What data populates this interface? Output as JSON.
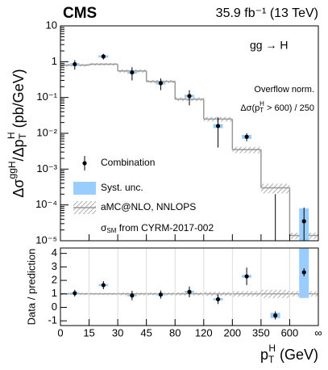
{
  "chart_data": [
    {
      "type": "step",
      "log_y": true,
      "title": "CMS",
      "subtitle": "35.9 fb⁻¹ (13 TeV)",
      "y_label": [
        "Δσ",
        "ggH",
        "/Δp",
        "T",
        "H",
        " (pb/GeV)"
      ],
      "annotations": [
        "gg → H",
        "Overflow norm.",
        [
          "Δσ(p",
          "T",
          "H",
          " > 600) / 250"
        ]
      ],
      "legend_note": [
        "σ",
        "SM",
        " from CYRM-2017-002"
      ],
      "ylim": [
        1e-05,
        10
      ],
      "yticks": [
        {
          "value": 1e-05,
          "label": "10⁻⁵"
        },
        {
          "value": 0.0001,
          "label": "10⁻⁴"
        },
        {
          "value": 0.001,
          "label": "10⁻³"
        },
        {
          "value": 0.01,
          "label": "10⁻²"
        },
        {
          "value": 0.1,
          "label": "10⁻¹"
        },
        1,
        10
      ],
      "series": [
        {
          "name": "Combination",
          "color": "#000000",
          "values": [
            0.85,
            1.4,
            0.5,
            0.25,
            0.11,
            0.016,
            0.008,
            -0.00018,
            3.5e-05
          ],
          "errors": [
            0.25,
            0.25,
            0.2,
            0.09,
            0.05,
            0.012,
            0.002,
            0.00038,
            5e-05
          ]
        },
        {
          "name": "Syst. unc.",
          "color": "#99ccff",
          "values": [
            0.06,
            0.1,
            0.04,
            0.02,
            0.01,
            0.002,
            0.001,
            0.0001,
            4.5e-05
          ]
        },
        {
          "name": "aMC@NLO, NNLOPS",
          "color": "#999999",
          "values": [
            0.8,
            0.85,
            0.55,
            0.28,
            0.09,
            0.025,
            0.0035,
            0.0003,
            1.4e-05
          ],
          "rel_errors": [
            0.08,
            0.08,
            0.1,
            0.1,
            0.12,
            0.15,
            0.2,
            0.3,
            0.2
          ]
        }
      ]
    },
    {
      "type": "ratio",
      "y_label": "Data / prediction",
      "x_label": [
        "p",
        "T",
        "H",
        " (GeV)"
      ],
      "xticks": [
        0,
        15,
        30,
        45,
        80,
        120,
        200,
        350,
        600,
        "∞"
      ],
      "ylim": [
        -1.35,
        4.4
      ],
      "yticks": [
        -1,
        0,
        1,
        2,
        3,
        4
      ],
      "grid": true,
      "series": [
        {
          "name": "Combination",
          "color": "#000000",
          "values": [
            1.05,
            1.65,
            0.88,
            0.95,
            1.15,
            0.6,
            2.3,
            -0.6,
            2.6
          ],
          "errors": [
            0.25,
            0.3,
            0.35,
            0.3,
            0.4,
            0.35,
            0.65,
            0.3,
            0.3
          ]
        },
        {
          "name": "Syst. unc.",
          "color": "#99ccff",
          "values": [
            0.05,
            0.08,
            0.06,
            0.06,
            0.08,
            0.08,
            0.1,
            0.2,
            1.9
          ]
        },
        {
          "name": "aMC@NLO, NNLOPS",
          "color": "#999999",
          "rel_errors": [
            0.08,
            0.08,
            0.1,
            0.1,
            0.12,
            0.15,
            0.2,
            0.3,
            0.2
          ]
        }
      ]
    }
  ]
}
